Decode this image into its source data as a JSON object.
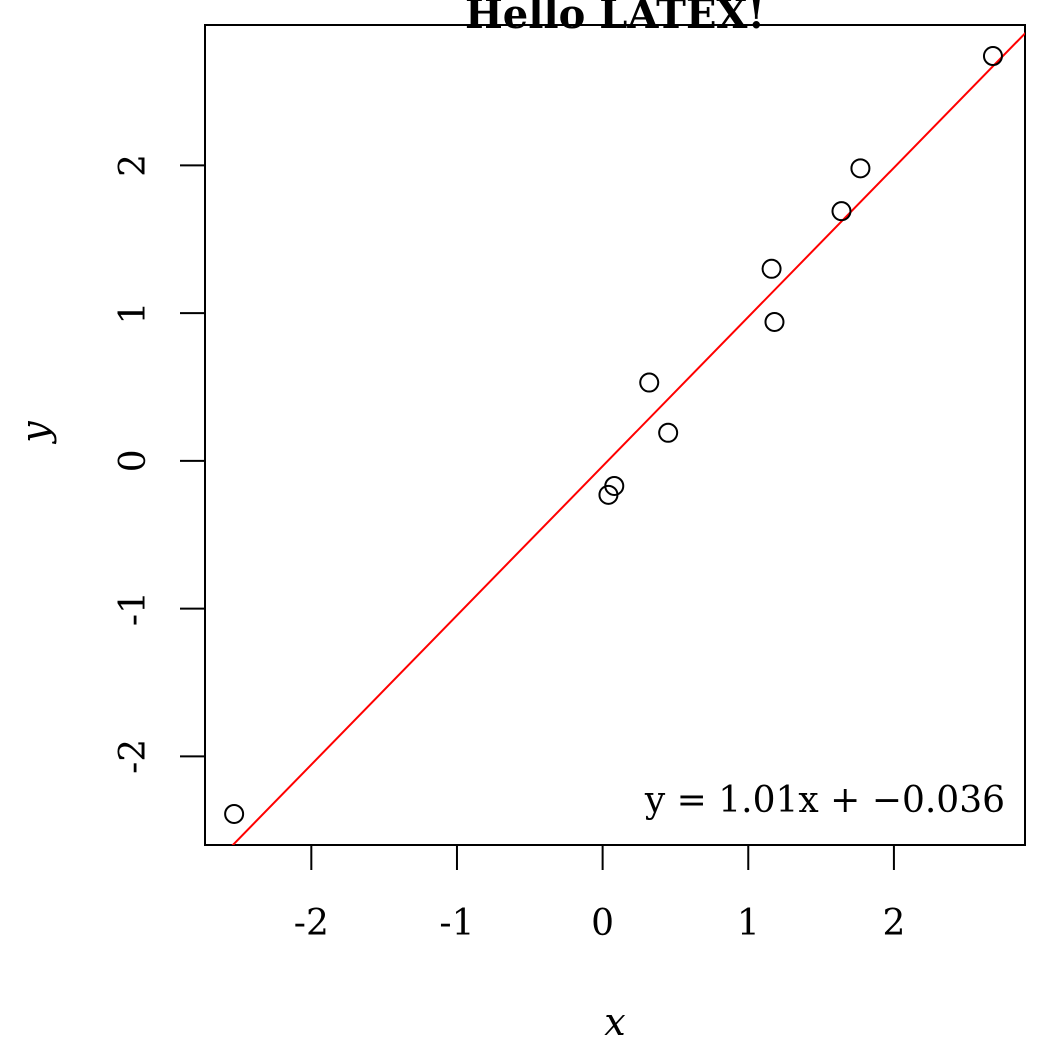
{
  "chart_data": {
    "type": "scatter",
    "title": "Hello LATEX!",
    "xlabel": "x",
    "ylabel": "y",
    "xlim": [
      -2.73,
      2.9
    ],
    "ylim": [
      -2.6,
      2.95
    ],
    "xticks": [
      -2,
      -1,
      0,
      1,
      2
    ],
    "yticks": [
      -2,
      -1,
      0,
      1,
      2
    ],
    "xtick_labels": [
      "-2",
      "-1",
      "0",
      "1",
      "2"
    ],
    "ytick_labels": [
      "-2",
      "-1",
      "0",
      "1",
      "2"
    ],
    "grid": false,
    "points": [
      {
        "x": -2.53,
        "y": -2.39
      },
      {
        "x": 0.04,
        "y": -0.23
      },
      {
        "x": 0.08,
        "y": -0.17
      },
      {
        "x": 0.32,
        "y": 0.53
      },
      {
        "x": 0.45,
        "y": 0.19
      },
      {
        "x": 1.16,
        "y": 1.3
      },
      {
        "x": 1.18,
        "y": 0.94
      },
      {
        "x": 1.64,
        "y": 1.69
      },
      {
        "x": 1.77,
        "y": 1.98
      },
      {
        "x": 2.68,
        "y": 2.74
      }
    ],
    "fit_line": {
      "slope": 1.01,
      "intercept": -0.036,
      "color": "#ff0000"
    },
    "annotation": "y = 1.01x + −0.036"
  }
}
